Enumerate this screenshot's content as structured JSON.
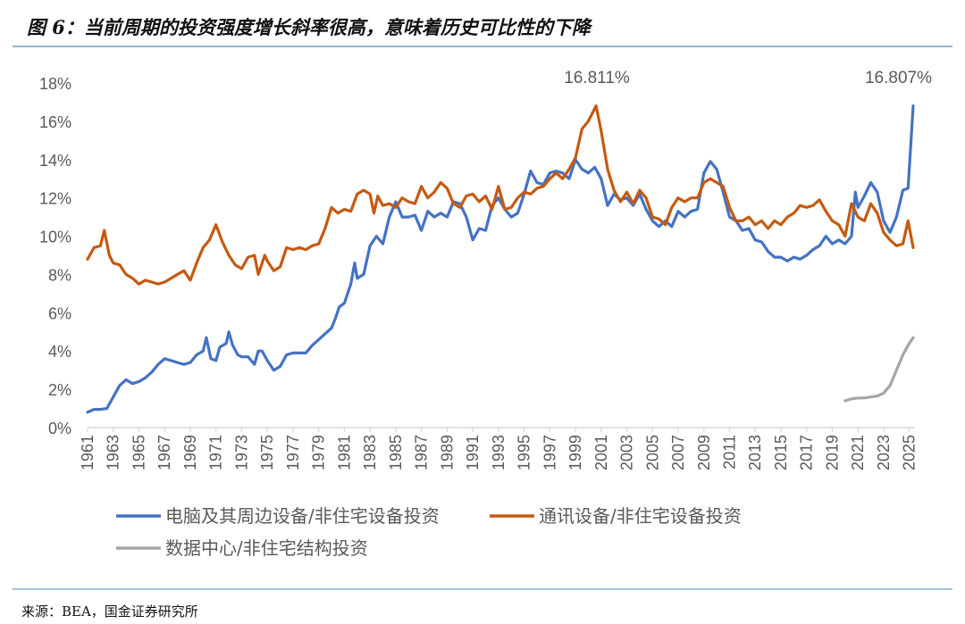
{
  "title": "图 6：当前周期的投资强度增长斜率很高，意味着历史可比性的下降",
  "source": "来源：BEA，国金证券研究所",
  "colors": {
    "rule": "#6A9FBF",
    "axis": "#D9D9D9"
  },
  "chart_data": {
    "type": "line",
    "ylim": [
      0,
      18
    ],
    "xlim": [
      1961,
      2025.3
    ],
    "grid": false,
    "legend_position": "bottom",
    "y_tick_labels": [
      "0%",
      "2%",
      "4%",
      "6%",
      "8%",
      "10%",
      "12%",
      "14%",
      "16%",
      "18%"
    ],
    "x_tick_labels": [
      "1961",
      "1963",
      "1965",
      "1967",
      "1969",
      "1971",
      "1973",
      "1975",
      "1977",
      "1979",
      "1981",
      "1983",
      "1985",
      "1987",
      "1989",
      "1991",
      "1993",
      "1995",
      "1997",
      "1999",
      "2001",
      "2003",
      "2005",
      "2007",
      "2009",
      "2011",
      "2013",
      "2015",
      "2017",
      "2019",
      "2021",
      "2023",
      "2025"
    ],
    "annotations": [
      {
        "text": "16.811%",
        "x": 2000.6,
        "y": 16.811
      },
      {
        "text": "16.807%",
        "x": 2025.3,
        "y": 16.807
      }
    ],
    "series": [
      {
        "name": "电脑及其周边设备/非住宅设备投资",
        "color": "#4472C4",
        "points": [
          [
            1961,
            0.8
          ],
          [
            1961.5,
            0.95
          ],
          [
            1962,
            0.95
          ],
          [
            1962.5,
            1.0
          ],
          [
            1963,
            1.6
          ],
          [
            1963.5,
            2.2
          ],
          [
            1964,
            2.5
          ],
          [
            1964.5,
            2.3
          ],
          [
            1965,
            2.4
          ],
          [
            1965.5,
            2.6
          ],
          [
            1966,
            2.9
          ],
          [
            1966.5,
            3.3
          ],
          [
            1967,
            3.6
          ],
          [
            1967.5,
            3.5
          ],
          [
            1968,
            3.4
          ],
          [
            1968.5,
            3.3
          ],
          [
            1969,
            3.4
          ],
          [
            1969.5,
            3.8
          ],
          [
            1970,
            4.0
          ],
          [
            1970.25,
            4.7
          ],
          [
            1970.6,
            3.6
          ],
          [
            1971,
            3.5
          ],
          [
            1971.3,
            4.2
          ],
          [
            1971.8,
            4.4
          ],
          [
            1972,
            5.0
          ],
          [
            1972.3,
            4.3
          ],
          [
            1972.7,
            3.8
          ],
          [
            1973,
            3.7
          ],
          [
            1973.5,
            3.7
          ],
          [
            1974,
            3.3
          ],
          [
            1974.3,
            4.0
          ],
          [
            1974.6,
            4.0
          ],
          [
            1975,
            3.5
          ],
          [
            1975.5,
            3.0
          ],
          [
            1976,
            3.2
          ],
          [
            1976.5,
            3.8
          ],
          [
            1977,
            3.9
          ],
          [
            1977.5,
            3.9
          ],
          [
            1978,
            3.9
          ],
          [
            1978.5,
            4.3
          ],
          [
            1979,
            4.6
          ],
          [
            1979.5,
            4.9
          ],
          [
            1980,
            5.2
          ],
          [
            1980.3,
            5.7
          ],
          [
            1980.6,
            6.3
          ],
          [
            1981,
            6.5
          ],
          [
            1981.5,
            7.5
          ],
          [
            1981.8,
            8.6
          ],
          [
            1982,
            7.8
          ],
          [
            1982.5,
            8.0
          ],
          [
            1983,
            9.5
          ],
          [
            1983.5,
            10.0
          ],
          [
            1984,
            9.6
          ],
          [
            1984.5,
            11.0
          ],
          [
            1985,
            11.8
          ],
          [
            1985.5,
            11.0
          ],
          [
            1986,
            11.0
          ],
          [
            1986.5,
            11.1
          ],
          [
            1987,
            10.3
          ],
          [
            1987.5,
            11.3
          ],
          [
            1988,
            11.0
          ],
          [
            1988.5,
            11.2
          ],
          [
            1989,
            11.0
          ],
          [
            1989.5,
            11.8
          ],
          [
            1990,
            11.7
          ],
          [
            1990.5,
            11.0
          ],
          [
            1991,
            9.8
          ],
          [
            1991.5,
            10.4
          ],
          [
            1992,
            10.3
          ],
          [
            1992.5,
            11.6
          ],
          [
            1993,
            12.0
          ],
          [
            1993.5,
            11.4
          ],
          [
            1994,
            11.0
          ],
          [
            1994.5,
            11.2
          ],
          [
            1995,
            12.2
          ],
          [
            1995.5,
            13.4
          ],
          [
            1996,
            12.8
          ],
          [
            1996.5,
            12.7
          ],
          [
            1997,
            13.3
          ],
          [
            1997.5,
            13.4
          ],
          [
            1998,
            13.3
          ],
          [
            1998.5,
            13.0
          ],
          [
            1999,
            14.0
          ],
          [
            1999.5,
            13.5
          ],
          [
            2000,
            13.3
          ],
          [
            2000.5,
            13.6
          ],
          [
            2001,
            13.0
          ],
          [
            2001.5,
            11.6
          ],
          [
            2002,
            12.2
          ],
          [
            2002.5,
            11.9
          ],
          [
            2003,
            12.0
          ],
          [
            2003.5,
            11.6
          ],
          [
            2004,
            12.2
          ],
          [
            2004.5,
            11.4
          ],
          [
            2005,
            10.8
          ],
          [
            2005.5,
            10.5
          ],
          [
            2006,
            10.8
          ],
          [
            2006.5,
            10.5
          ],
          [
            2007,
            11.3
          ],
          [
            2007.5,
            11.0
          ],
          [
            2008,
            11.3
          ],
          [
            2008.5,
            11.4
          ],
          [
            2009,
            13.3
          ],
          [
            2009.5,
            13.9
          ],
          [
            2010,
            13.5
          ],
          [
            2010.5,
            12.3
          ],
          [
            2011,
            11.0
          ],
          [
            2011.5,
            10.8
          ],
          [
            2012,
            10.3
          ],
          [
            2012.5,
            10.4
          ],
          [
            2013,
            9.8
          ],
          [
            2013.5,
            9.7
          ],
          [
            2014,
            9.2
          ],
          [
            2014.5,
            8.9
          ],
          [
            2015,
            8.9
          ],
          [
            2015.5,
            8.7
          ],
          [
            2016,
            8.9
          ],
          [
            2016.5,
            8.8
          ],
          [
            2017,
            9.0
          ],
          [
            2017.5,
            9.3
          ],
          [
            2018,
            9.5
          ],
          [
            2018.5,
            10.0
          ],
          [
            2019,
            9.6
          ],
          [
            2019.5,
            9.8
          ],
          [
            2020,
            9.6
          ],
          [
            2020.5,
            10.0
          ],
          [
            2020.8,
            12.3
          ],
          [
            2021,
            11.5
          ],
          [
            2021.5,
            12.1
          ],
          [
            2022,
            12.8
          ],
          [
            2022.5,
            12.3
          ],
          [
            2023,
            10.8
          ],
          [
            2023.5,
            10.2
          ],
          [
            2024,
            11.0
          ],
          [
            2024.5,
            12.4
          ],
          [
            2024.9,
            12.5
          ],
          [
            2025.3,
            16.807
          ]
        ]
      },
      {
        "name": "通讯设备/非住宅设备投资",
        "color": "#C55A11",
        "points": [
          [
            1961,
            8.8
          ],
          [
            1961.5,
            9.4
          ],
          [
            1962,
            9.5
          ],
          [
            1962.3,
            10.3
          ],
          [
            1962.7,
            9.0
          ],
          [
            1963,
            8.6
          ],
          [
            1963.5,
            8.5
          ],
          [
            1964,
            8.0
          ],
          [
            1964.5,
            7.8
          ],
          [
            1965,
            7.5
          ],
          [
            1965.5,
            7.7
          ],
          [
            1966,
            7.6
          ],
          [
            1966.5,
            7.5
          ],
          [
            1967,
            7.6
          ],
          [
            1967.5,
            7.8
          ],
          [
            1968,
            8.0
          ],
          [
            1968.5,
            8.2
          ],
          [
            1969,
            7.7
          ],
          [
            1969.5,
            8.6
          ],
          [
            1970,
            9.4
          ],
          [
            1970.5,
            9.8
          ],
          [
            1971,
            10.6
          ],
          [
            1971.5,
            9.7
          ],
          [
            1972,
            9.0
          ],
          [
            1972.5,
            8.5
          ],
          [
            1973,
            8.3
          ],
          [
            1973.5,
            8.9
          ],
          [
            1974,
            9.0
          ],
          [
            1974.3,
            8.0
          ],
          [
            1974.8,
            9.0
          ],
          [
            1975,
            8.7
          ],
          [
            1975.5,
            8.2
          ],
          [
            1976,
            8.4
          ],
          [
            1976.5,
            9.4
          ],
          [
            1977,
            9.3
          ],
          [
            1977.5,
            9.4
          ],
          [
            1978,
            9.3
          ],
          [
            1978.5,
            9.5
          ],
          [
            1979,
            9.6
          ],
          [
            1979.5,
            10.4
          ],
          [
            1980,
            11.5
          ],
          [
            1980.5,
            11.2
          ],
          [
            1981,
            11.4
          ],
          [
            1981.5,
            11.3
          ],
          [
            1982,
            12.2
          ],
          [
            1982.5,
            12.4
          ],
          [
            1983,
            12.2
          ],
          [
            1983.3,
            11.2
          ],
          [
            1983.6,
            12.1
          ],
          [
            1984,
            11.6
          ],
          [
            1984.5,
            11.7
          ],
          [
            1985,
            11.5
          ],
          [
            1985.5,
            12.0
          ],
          [
            1986,
            11.8
          ],
          [
            1986.5,
            11.7
          ],
          [
            1987,
            12.6
          ],
          [
            1987.5,
            12.0
          ],
          [
            1988,
            12.3
          ],
          [
            1988.5,
            12.8
          ],
          [
            1989,
            12.5
          ],
          [
            1989.5,
            11.7
          ],
          [
            1990,
            11.5
          ],
          [
            1990.5,
            12.1
          ],
          [
            1991,
            12.2
          ],
          [
            1991.5,
            11.8
          ],
          [
            1992,
            12.1
          ],
          [
            1992.5,
            11.4
          ],
          [
            1993,
            12.6
          ],
          [
            1993.5,
            11.4
          ],
          [
            1994,
            11.5
          ],
          [
            1994.5,
            12.0
          ],
          [
            1995,
            12.3
          ],
          [
            1995.5,
            12.2
          ],
          [
            1996,
            12.5
          ],
          [
            1996.5,
            12.6
          ],
          [
            1997,
            13.0
          ],
          [
            1997.5,
            13.3
          ],
          [
            1998,
            13.0
          ],
          [
            1998.5,
            13.5
          ],
          [
            1999,
            14.1
          ],
          [
            1999.5,
            15.6
          ],
          [
            2000,
            16.0
          ],
          [
            2000.6,
            16.811
          ],
          [
            2001,
            15.5
          ],
          [
            2001.5,
            13.5
          ],
          [
            2002,
            12.4
          ],
          [
            2002.5,
            11.8
          ],
          [
            2003,
            12.3
          ],
          [
            2003.5,
            11.7
          ],
          [
            2004,
            12.4
          ],
          [
            2004.5,
            12.0
          ],
          [
            2005,
            11.0
          ],
          [
            2005.5,
            10.9
          ],
          [
            2006,
            10.6
          ],
          [
            2006.5,
            11.5
          ],
          [
            2007,
            12.0
          ],
          [
            2007.5,
            11.8
          ],
          [
            2008,
            12.0
          ],
          [
            2008.5,
            12.0
          ],
          [
            2009,
            12.8
          ],
          [
            2009.5,
            13.0
          ],
          [
            2010,
            12.8
          ],
          [
            2010.5,
            12.6
          ],
          [
            2011,
            11.5
          ],
          [
            2011.5,
            10.8
          ],
          [
            2012,
            10.8
          ],
          [
            2012.5,
            11.0
          ],
          [
            2013,
            10.6
          ],
          [
            2013.5,
            10.8
          ],
          [
            2014,
            10.4
          ],
          [
            2014.5,
            10.8
          ],
          [
            2015,
            10.6
          ],
          [
            2015.5,
            11.0
          ],
          [
            2016,
            11.2
          ],
          [
            2016.5,
            11.6
          ],
          [
            2017,
            11.5
          ],
          [
            2017.5,
            11.6
          ],
          [
            2018,
            11.9
          ],
          [
            2018.5,
            11.3
          ],
          [
            2019,
            10.8
          ],
          [
            2019.5,
            10.6
          ],
          [
            2020,
            10.0
          ],
          [
            2020.5,
            11.7
          ],
          [
            2021,
            11.0
          ],
          [
            2021.5,
            10.8
          ],
          [
            2022,
            11.7
          ],
          [
            2022.5,
            11.2
          ],
          [
            2023,
            10.2
          ],
          [
            2023.5,
            9.8
          ],
          [
            2024,
            9.5
          ],
          [
            2024.5,
            9.6
          ],
          [
            2024.9,
            10.8
          ],
          [
            2025.3,
            9.4
          ]
        ]
      },
      {
        "name": "数据中心/非住宅结构投资",
        "color": "#A5A5A5",
        "points": [
          [
            2020,
            1.4
          ],
          [
            2020.5,
            1.5
          ],
          [
            2021,
            1.55
          ],
          [
            2021.5,
            1.55
          ],
          [
            2022,
            1.6
          ],
          [
            2022.5,
            1.65
          ],
          [
            2023,
            1.8
          ],
          [
            2023.5,
            2.2
          ],
          [
            2024,
            3.0
          ],
          [
            2024.5,
            3.8
          ],
          [
            2024.9,
            4.3
          ],
          [
            2025.3,
            4.7
          ]
        ]
      }
    ]
  }
}
